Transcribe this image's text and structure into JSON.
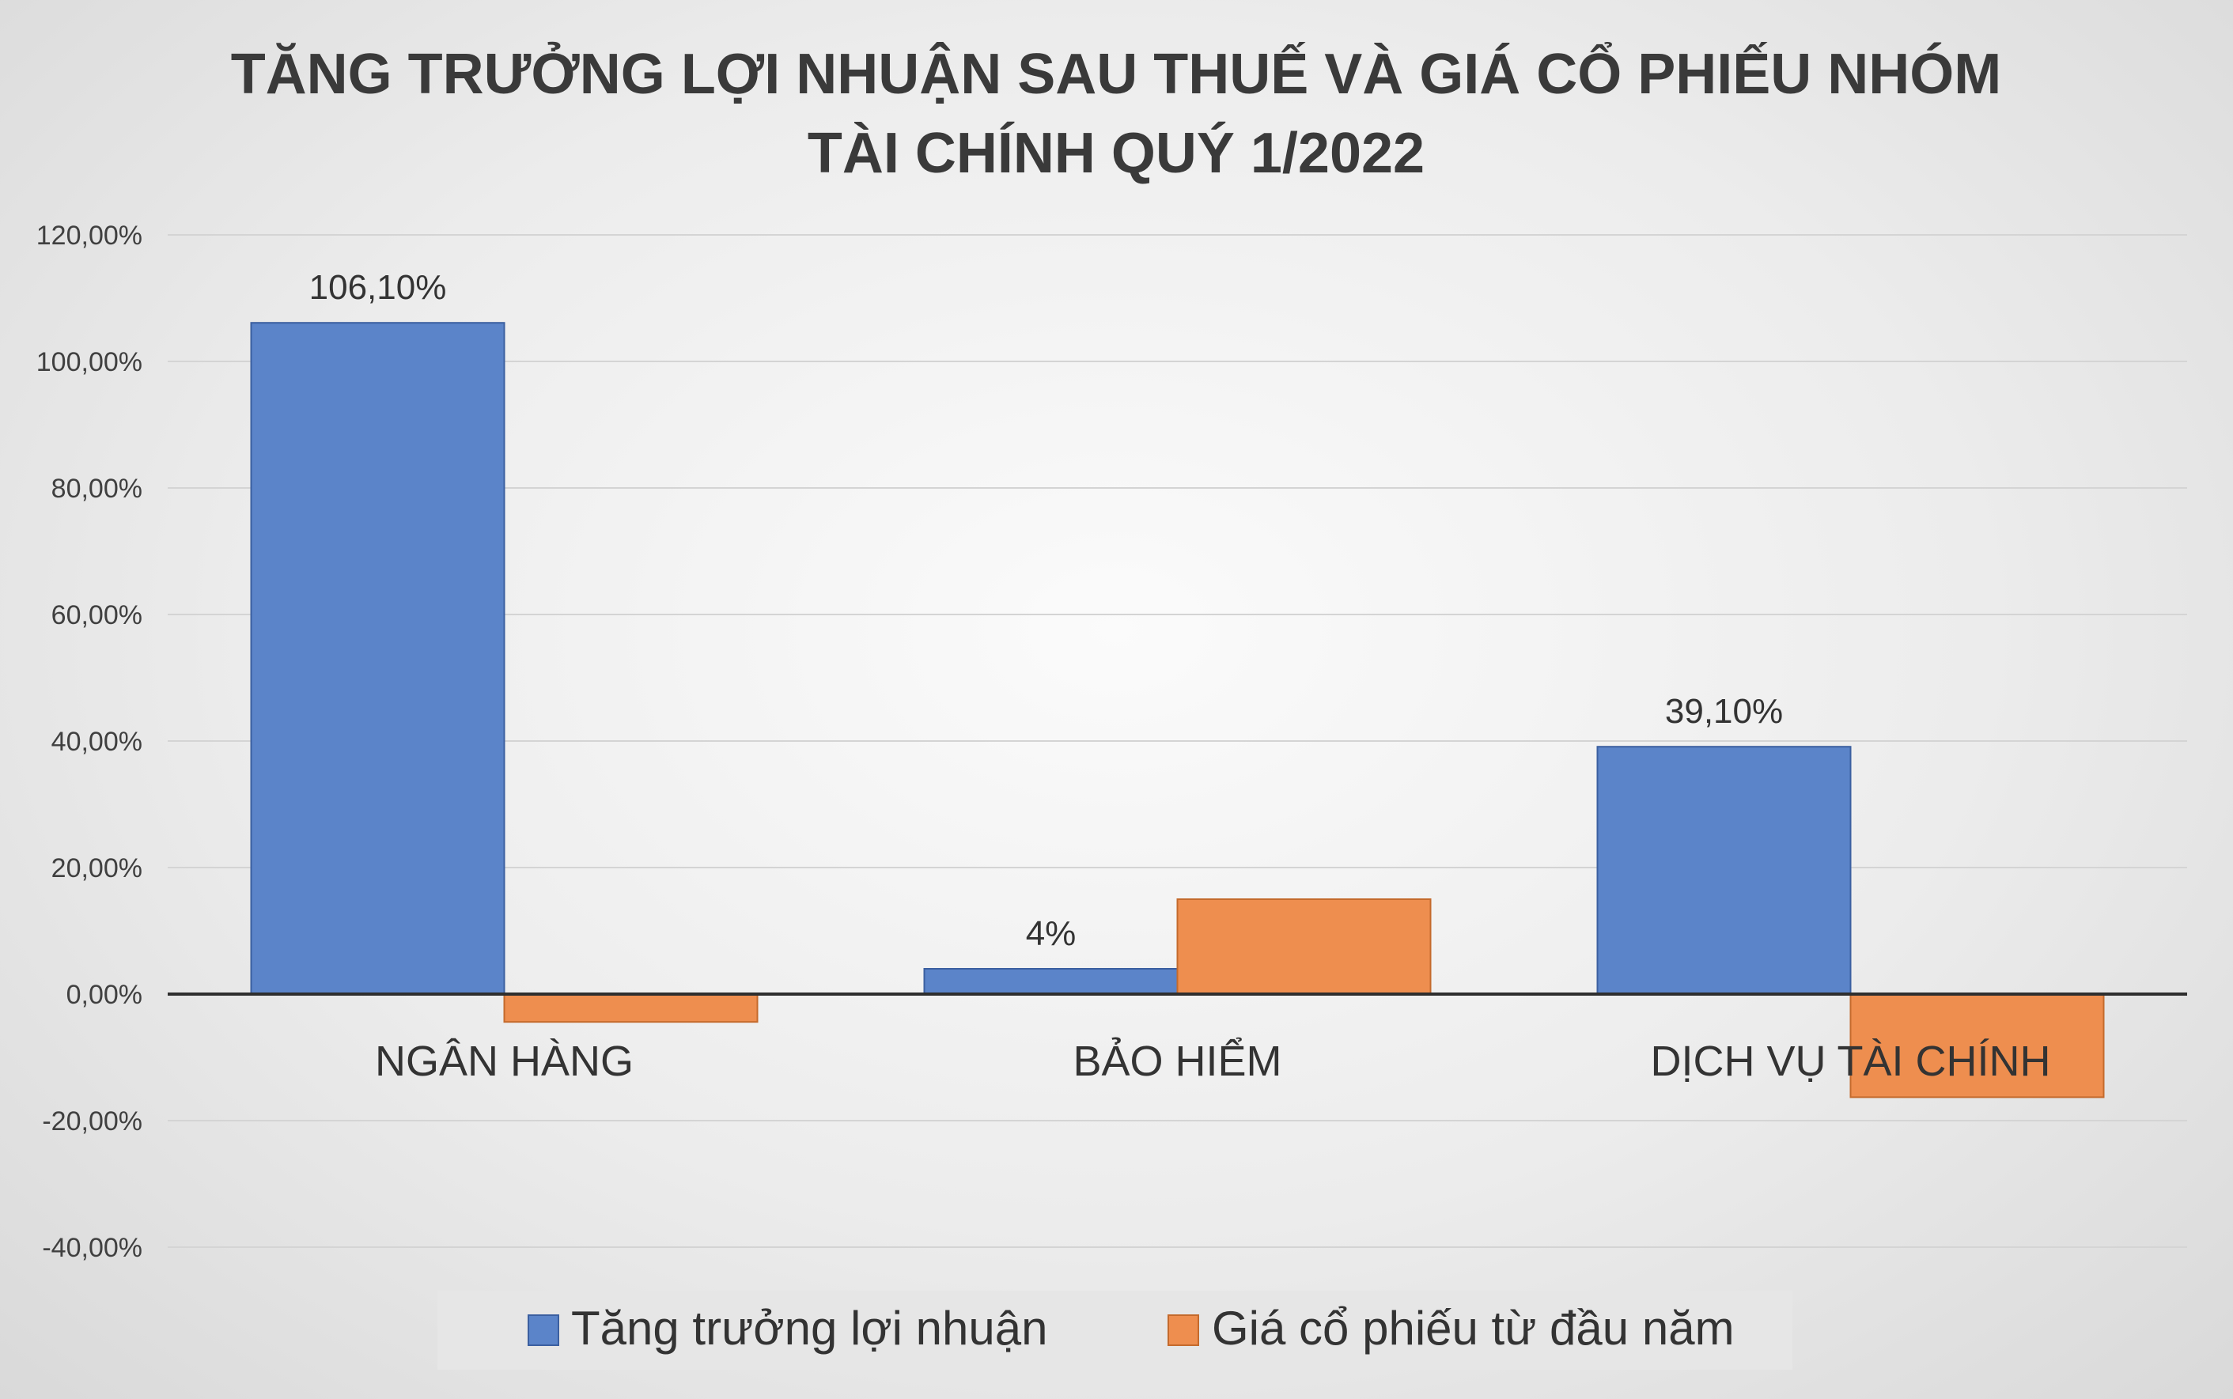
{
  "chart_data": {
    "type": "bar",
    "title_lines": [
      "TĂNG TRƯỞNG LỢI NHUẬN SAU THUẾ VÀ GIÁ CỔ PHIẾU NHÓM",
      "TÀI CHÍNH QUÝ 1/2022"
    ],
    "categories": [
      "NGÂN HÀNG",
      "BẢO HIỂM",
      "DỊCH VỤ TÀI CHÍNH"
    ],
    "series": [
      {
        "name": "Tăng trưởng lợi nhuận",
        "color": "#5b84c9",
        "values": [
          106.1,
          4,
          39.1
        ],
        "data_labels": [
          "106,10%",
          "4%",
          "39,10%"
        ]
      },
      {
        "name": "Giá cổ phiếu từ đầu năm",
        "color": "#ee8e4f",
        "values": [
          -4.4,
          15,
          -16.3
        ],
        "data_labels": []
      }
    ],
    "ylim": [
      -40,
      120
    ],
    "y_ticks": [
      120,
      100,
      80,
      60,
      40,
      20,
      0,
      -20,
      -40
    ],
    "y_tick_labels": [
      "120,00%",
      "100,00%",
      "80,00%",
      "60,00%",
      "40,00%",
      "20,00%",
      "0,00%",
      "-20,00%",
      "-40,00%"
    ],
    "grid": true,
    "legend_position": "bottom"
  }
}
